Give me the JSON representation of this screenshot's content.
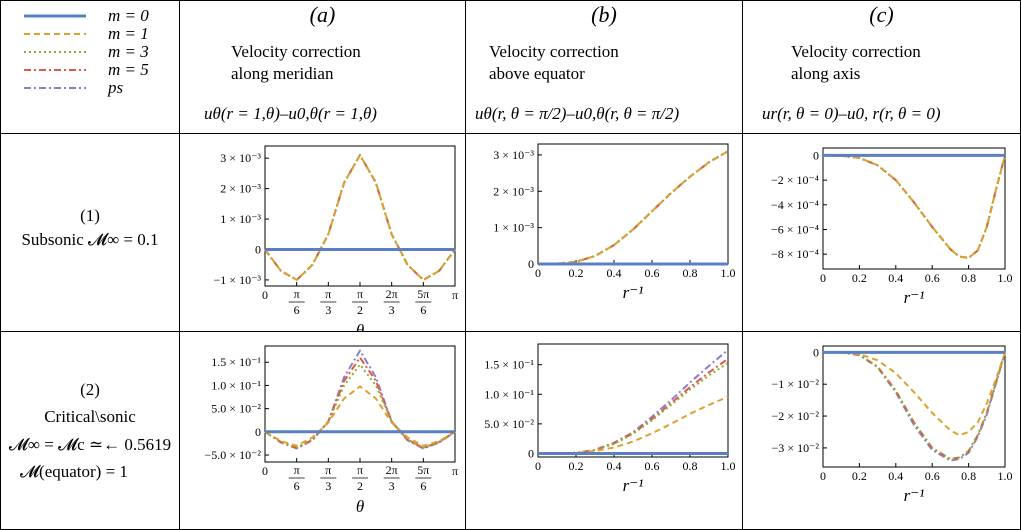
{
  "legend": {
    "entries": [
      {
        "label": "m = 0",
        "color": "#5b7fc4",
        "dash": "solid"
      },
      {
        "label": "m = 1",
        "color": "#e0a030",
        "dash": "dashed"
      },
      {
        "label": "m = 3",
        "color": "#8dae2d",
        "dash": "dotted"
      },
      {
        "label": "m = 5",
        "color": "#e2574c",
        "dash": "dashdot"
      },
      {
        "label": "ps",
        "color": "#8c7dc7",
        "dash": "dashdot"
      }
    ]
  },
  "columns": [
    {
      "letter": "(a)",
      "line1": "Velocity correction",
      "line2": "along meridian",
      "eq": "uθ(r = 1,θ)–u0,θ(r = 1,θ)"
    },
    {
      "letter": "(b)",
      "line1": "Velocity correction",
      "line2": "above equator",
      "eq": "uθ(r, θ = π/2)–u0,θ(r, θ = π/2)"
    },
    {
      "letter": "(c)",
      "line1": "Velocity correction",
      "line2": "along axis",
      "eq": "ur(r, θ = 0)–u0, r(r, θ = 0)"
    }
  ],
  "rows": [
    {
      "line1": "(1)",
      "line2": "Subsonic 𝓜∞ = 0.1",
      "line3": "",
      "line4": ""
    },
    {
      "line1": "(2)",
      "line2": "Critical\\sonic",
      "line3": "𝓜∞ = 𝓜c ≃← 0.5619",
      "line4": "𝓜(equator) = 1"
    }
  ],
  "chart_data": [
    {
      "type": "line",
      "panel": "1a",
      "xlabel": "θ",
      "xlim": [
        0,
        3.14159
      ],
      "ylim": [
        -0.0012,
        0.0034
      ],
      "xticks": [
        {
          "v": 0,
          "label": "0"
        },
        {
          "v": 0.5236,
          "label": "π/6"
        },
        {
          "v": 1.0472,
          "label": "π/3"
        },
        {
          "v": 1.5708,
          "label": "π/2"
        },
        {
          "v": 2.0944,
          "label": "2π/3"
        },
        {
          "v": 2.618,
          "label": "5π/6"
        },
        {
          "v": 3.1416,
          "label": "π"
        }
      ],
      "yticks": [
        {
          "v": 0.003,
          "label": "3 × 10⁻³"
        },
        {
          "v": 0.002,
          "label": "2 × 10⁻³"
        },
        {
          "v": 0.001,
          "label": "1 × 10⁻³"
        },
        {
          "v": 0,
          "label": "0"
        },
        {
          "v": -0.001,
          "label": "−1 × 10⁻³"
        }
      ],
      "x": [
        0,
        0.2618,
        0.5236,
        0.7854,
        1.0472,
        1.309,
        1.5708,
        1.8326,
        2.0944,
        2.3562,
        2.618,
        2.8798,
        3.1416
      ],
      "series": [
        {
          "name": "m = 0",
          "values": [
            0,
            0,
            0,
            0,
            0,
            0,
            0,
            0,
            0,
            0,
            0,
            0,
            0
          ]
        },
        {
          "name": "m = 1",
          "values": [
            0,
            -0.0007,
            -0.001,
            -0.0005,
            0.0005,
            0.0022,
            0.0031,
            0.0022,
            0.0005,
            -0.0005,
            -0.001,
            -0.0007,
            0
          ]
        },
        {
          "name": "m = 3",
          "values": [
            0,
            -0.0007,
            -0.001,
            -0.0005,
            0.0005,
            0.0022,
            0.0031,
            0.0022,
            0.0005,
            -0.0005,
            -0.001,
            -0.0007,
            0
          ]
        },
        {
          "name": "m = 5",
          "values": [
            0,
            -0.0007,
            -0.001,
            -0.0005,
            0.0005,
            0.0022,
            0.0031,
            0.0022,
            0.0005,
            -0.0005,
            -0.001,
            -0.0007,
            0
          ]
        },
        {
          "name": "ps",
          "values": [
            0,
            -0.0007,
            -0.001,
            -0.0005,
            0.0005,
            0.0022,
            0.0031,
            0.0022,
            0.0005,
            -0.0005,
            -0.001,
            -0.0007,
            0
          ]
        }
      ]
    },
    {
      "type": "line",
      "panel": "1b",
      "xlabel": "r⁻¹",
      "xlim": [
        0,
        1.0
      ],
      "ylim": [
        0,
        0.0033
      ],
      "xticks": [
        {
          "v": 0,
          "label": "0"
        },
        {
          "v": 0.2,
          "label": "0.2"
        },
        {
          "v": 0.4,
          "label": "0.4"
        },
        {
          "v": 0.6,
          "label": "0.6"
        },
        {
          "v": 0.8,
          "label": "0.8"
        },
        {
          "v": 1.0,
          "label": "1.0"
        }
      ],
      "yticks": [
        {
          "v": 0.003,
          "label": "3 × 10⁻³"
        },
        {
          "v": 0.002,
          "label": "2 × 10⁻³"
        },
        {
          "v": 0.001,
          "label": "1 × 10⁻³"
        },
        {
          "v": 0,
          "label": "0"
        }
      ],
      "x": [
        0,
        0.1,
        0.2,
        0.3,
        0.4,
        0.5,
        0.6,
        0.7,
        0.8,
        0.9,
        1.0
      ],
      "series": [
        {
          "name": "m = 0",
          "values": [
            0,
            0,
            0,
            0,
            0,
            0,
            0,
            0,
            0,
            0,
            0
          ]
        },
        {
          "name": "m = 1",
          "values": [
            0,
            1e-05,
            6e-05,
            0.00022,
            0.00052,
            0.00095,
            0.00145,
            0.00195,
            0.0024,
            0.0028,
            0.0031
          ]
        },
        {
          "name": "m = 3",
          "values": [
            0,
            1e-05,
            6e-05,
            0.00022,
            0.00052,
            0.00095,
            0.00145,
            0.00195,
            0.0024,
            0.0028,
            0.0031
          ]
        },
        {
          "name": "m = 5",
          "values": [
            0,
            1e-05,
            6e-05,
            0.00022,
            0.00052,
            0.00095,
            0.00145,
            0.00195,
            0.0024,
            0.0028,
            0.0031
          ]
        },
        {
          "name": "ps",
          "values": [
            0,
            1e-05,
            6e-05,
            0.00022,
            0.00052,
            0.00095,
            0.00145,
            0.00195,
            0.0024,
            0.0028,
            0.0031
          ]
        }
      ]
    },
    {
      "type": "line",
      "panel": "1c",
      "xlabel": "r⁻¹",
      "xlim": [
        0,
        1.0
      ],
      "ylim": [
        -0.00092,
        6e-05
      ],
      "xticks": [
        {
          "v": 0,
          "label": "0"
        },
        {
          "v": 0.2,
          "label": "0.2"
        },
        {
          "v": 0.4,
          "label": "0.4"
        },
        {
          "v": 0.6,
          "label": "0.6"
        },
        {
          "v": 0.8,
          "label": "0.8"
        },
        {
          "v": 1.0,
          "label": "1.0"
        }
      ],
      "yticks": [
        {
          "v": 0,
          "label": "0"
        },
        {
          "v": -0.0002,
          "label": "−2 × 10⁻⁴"
        },
        {
          "v": -0.0004,
          "label": "−4 × 10⁻⁴"
        },
        {
          "v": -0.0006,
          "label": "−6 × 10⁻⁴"
        },
        {
          "v": -0.0008,
          "label": "−8 × 10⁻⁴"
        }
      ],
      "x": [
        0,
        0.1,
        0.2,
        0.3,
        0.4,
        0.5,
        0.6,
        0.7,
        0.75,
        0.8,
        0.85,
        0.9,
        0.95,
        1.0
      ],
      "series": [
        {
          "name": "m = 0",
          "values": [
            0,
            0,
            0,
            0,
            0,
            0,
            0,
            0,
            0,
            0,
            0,
            0,
            0,
            0
          ]
        },
        {
          "name": "m = 1",
          "values": [
            0,
            -3e-06,
            -2e-05,
            -8e-05,
            -0.0002,
            -0.00038,
            -0.00058,
            -0.00076,
            -0.00082,
            -0.00083,
            -0.00077,
            -0.00058,
            -0.00028,
            0
          ]
        },
        {
          "name": "m = 3",
          "values": [
            0,
            -3e-06,
            -2e-05,
            -8e-05,
            -0.0002,
            -0.00038,
            -0.00058,
            -0.00076,
            -0.00082,
            -0.00083,
            -0.00077,
            -0.00058,
            -0.00028,
            0
          ]
        },
        {
          "name": "m = 5",
          "values": [
            0,
            -3e-06,
            -2e-05,
            -8e-05,
            -0.0002,
            -0.00038,
            -0.00058,
            -0.00076,
            -0.00082,
            -0.00083,
            -0.00077,
            -0.00058,
            -0.00028,
            0
          ]
        },
        {
          "name": "ps",
          "values": [
            0,
            -3e-06,
            -2e-05,
            -8e-05,
            -0.0002,
            -0.00038,
            -0.00058,
            -0.00076,
            -0.00082,
            -0.00083,
            -0.00077,
            -0.00058,
            -0.00028,
            0
          ]
        }
      ]
    },
    {
      "type": "line",
      "panel": "2a",
      "xlabel": "θ",
      "xlim": [
        0,
        3.14159
      ],
      "ylim": [
        -0.065,
        0.185
      ],
      "xticks": [
        {
          "v": 0,
          "label": "0"
        },
        {
          "v": 0.5236,
          "label": "π/6"
        },
        {
          "v": 1.0472,
          "label": "π/3"
        },
        {
          "v": 1.5708,
          "label": "π/2"
        },
        {
          "v": 2.0944,
          "label": "2π/3"
        },
        {
          "v": 2.618,
          "label": "5π/6"
        },
        {
          "v": 3.1416,
          "label": "π"
        }
      ],
      "yticks": [
        {
          "v": 0.15,
          "label": "1.5 × 10⁻¹"
        },
        {
          "v": 0.1,
          "label": "1.0 × 10⁻¹"
        },
        {
          "v": 0.05,
          "label": "5.0 × 10⁻²"
        },
        {
          "v": 0,
          "label": "0"
        },
        {
          "v": -0.05,
          "label": "−5.0 × 10⁻²"
        }
      ],
      "x": [
        0,
        0.2618,
        0.5236,
        0.7854,
        1.0472,
        1.309,
        1.5708,
        1.8326,
        2.0944,
        2.3562,
        2.618,
        2.8798,
        3.1416
      ],
      "series": [
        {
          "name": "m = 0",
          "values": [
            0,
            0,
            0,
            0,
            0,
            0,
            0,
            0,
            0,
            0,
            0,
            0,
            0
          ]
        },
        {
          "name": "m = 1",
          "values": [
            0,
            -0.02,
            -0.03,
            -0.012,
            0.02,
            0.072,
            0.098,
            0.072,
            0.02,
            -0.012,
            -0.03,
            -0.02,
            0
          ]
        },
        {
          "name": "m = 3",
          "values": [
            0,
            -0.022,
            -0.034,
            -0.016,
            0.022,
            0.1,
            0.145,
            0.1,
            0.022,
            -0.016,
            -0.034,
            -0.022,
            0
          ]
        },
        {
          "name": "m = 5",
          "values": [
            0,
            -0.022,
            -0.035,
            -0.017,
            0.022,
            0.11,
            0.16,
            0.11,
            0.022,
            -0.017,
            -0.035,
            -0.022,
            0
          ]
        },
        {
          "name": "ps",
          "values": [
            0,
            -0.023,
            -0.036,
            -0.018,
            0.022,
            0.118,
            0.175,
            0.118,
            0.022,
            -0.018,
            -0.036,
            -0.023,
            0
          ]
        }
      ]
    },
    {
      "type": "line",
      "panel": "2b",
      "xlabel": "r⁻¹",
      "xlim": [
        0,
        1.0
      ],
      "ylim": [
        -0.006,
        0.185
      ],
      "xticks": [
        {
          "v": 0,
          "label": "0"
        },
        {
          "v": 0.2,
          "label": "0.2"
        },
        {
          "v": 0.4,
          "label": "0.4"
        },
        {
          "v": 0.6,
          "label": "0.6"
        },
        {
          "v": 0.8,
          "label": "0.8"
        },
        {
          "v": 1.0,
          "label": "1.0"
        }
      ],
      "yticks": [
        {
          "v": 0.15,
          "label": "1.5 × 10⁻¹"
        },
        {
          "v": 0.1,
          "label": "1.0 × 10⁻¹"
        },
        {
          "v": 0.05,
          "label": "5.0 × 10⁻²"
        },
        {
          "v": 0,
          "label": "0"
        }
      ],
      "x": [
        0,
        0.1,
        0.2,
        0.3,
        0.4,
        0.5,
        0.6,
        0.7,
        0.8,
        0.9,
        1.0
      ],
      "series": [
        {
          "name": "m = 0",
          "values": [
            0,
            0,
            0,
            0,
            0,
            0,
            0,
            0,
            0,
            0,
            0
          ]
        },
        {
          "name": "m = 1",
          "values": [
            0,
            0,
            0.001,
            0.004,
            0.01,
            0.02,
            0.034,
            0.05,
            0.067,
            0.082,
            0.096
          ]
        },
        {
          "name": "m = 3",
          "values": [
            0,
            0,
            0.001,
            0.006,
            0.016,
            0.033,
            0.056,
            0.082,
            0.108,
            0.132,
            0.153
          ]
        },
        {
          "name": "m = 5",
          "values": [
            0,
            0,
            0.001,
            0.006,
            0.017,
            0.034,
            0.058,
            0.085,
            0.112,
            0.137,
            0.16
          ]
        },
        {
          "name": "ps",
          "values": [
            0,
            0,
            0.001,
            0.006,
            0.018,
            0.036,
            0.062,
            0.09,
            0.12,
            0.148,
            0.175
          ]
        }
      ]
    },
    {
      "type": "line",
      "panel": "2c",
      "xlabel": "r⁻¹",
      "xlim": [
        0,
        1.0
      ],
      "ylim": [
        -0.036,
        0.002
      ],
      "xticks": [
        {
          "v": 0,
          "label": "0"
        },
        {
          "v": 0.2,
          "label": "0.2"
        },
        {
          "v": 0.4,
          "label": "0.4"
        },
        {
          "v": 0.6,
          "label": "0.6"
        },
        {
          "v": 0.8,
          "label": "0.8"
        },
        {
          "v": 1.0,
          "label": "1.0"
        }
      ],
      "yticks": [
        {
          "v": 0,
          "label": "0"
        },
        {
          "v": -0.01,
          "label": "−1 × 10⁻²"
        },
        {
          "v": -0.02,
          "label": "−2 × 10⁻²"
        },
        {
          "v": -0.03,
          "label": "−3 × 10⁻²"
        }
      ],
      "x": [
        0,
        0.1,
        0.2,
        0.3,
        0.4,
        0.5,
        0.6,
        0.7,
        0.75,
        0.8,
        0.85,
        0.9,
        0.95,
        1.0
      ],
      "series": [
        {
          "name": "m = 0",
          "values": [
            0,
            0,
            0,
            0,
            0,
            0,
            0,
            0,
            0,
            0,
            0,
            0,
            0,
            0
          ]
        },
        {
          "name": "m = 1",
          "values": [
            0,
            0,
            -0.0005,
            -0.0025,
            -0.0065,
            -0.0125,
            -0.019,
            -0.0245,
            -0.026,
            -0.025,
            -0.022,
            -0.016,
            -0.0085,
            0
          ]
        },
        {
          "name": "m = 3",
          "values": [
            0,
            0,
            -0.0008,
            -0.0045,
            -0.012,
            -0.022,
            -0.03,
            -0.0335,
            -0.033,
            -0.031,
            -0.026,
            -0.019,
            -0.0095,
            0
          ]
        },
        {
          "name": "m = 5",
          "values": [
            0,
            0,
            -0.0008,
            -0.0045,
            -0.012,
            -0.022,
            -0.03,
            -0.0335,
            -0.033,
            -0.031,
            -0.026,
            -0.019,
            -0.0095,
            0
          ]
        },
        {
          "name": "ps",
          "values": [
            0,
            0,
            -0.0009,
            -0.0047,
            -0.0125,
            -0.0228,
            -0.0307,
            -0.034,
            -0.0335,
            -0.0315,
            -0.0265,
            -0.0195,
            -0.0098,
            0
          ]
        }
      ]
    }
  ]
}
